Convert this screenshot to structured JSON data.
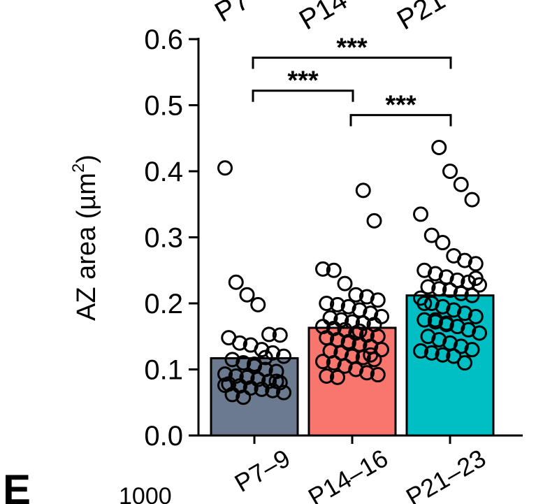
{
  "chart_data": {
    "type": "bar",
    "title": "",
    "xlabel": "",
    "ylabel": "AZ area (µm²)",
    "ylabel_parts": {
      "main": "AZ area (µm",
      "sup": "2",
      "close": ")"
    },
    "ylim": [
      0,
      0.6
    ],
    "yticks": [
      "0.0",
      "0.1",
      "0.2",
      "0.3",
      "0.4",
      "0.5",
      "0.6"
    ],
    "categories": [
      "P7–9",
      "P14–16",
      "P21–23"
    ],
    "values": [
      0.117,
      0.163,
      0.212
    ],
    "colors": [
      "#6b7a8f",
      "#f8766d",
      "#00bfc4"
    ],
    "points": [
      [
        0.405,
        0.232,
        0.213,
        0.198,
        0.153,
        0.152,
        0.148,
        0.14,
        0.137,
        0.13,
        0.125,
        0.12,
        0.115,
        0.11,
        0.105,
        0.1,
        0.097,
        0.093,
        0.09,
        0.088,
        0.085,
        0.082,
        0.08,
        0.078,
        0.075,
        0.072,
        0.07,
        0.068,
        0.065,
        0.062,
        0.058,
        0.108,
        0.118,
        0.082,
        0.076
      ],
      [
        0.371,
        0.325,
        0.252,
        0.25,
        0.23,
        0.213,
        0.21,
        0.205,
        0.2,
        0.198,
        0.195,
        0.19,
        0.185,
        0.18,
        0.178,
        0.175,
        0.172,
        0.17,
        0.168,
        0.165,
        0.162,
        0.16,
        0.155,
        0.152,
        0.15,
        0.148,
        0.145,
        0.14,
        0.138,
        0.135,
        0.13,
        0.128,
        0.125,
        0.12,
        0.118,
        0.115,
        0.112,
        0.11,
        0.105,
        0.1,
        0.095,
        0.092,
        0.09,
        0.088,
        0.142,
        0.158,
        0.122
      ],
      [
        0.436,
        0.4,
        0.38,
        0.357,
        0.335,
        0.303,
        0.292,
        0.272,
        0.265,
        0.26,
        0.25,
        0.245,
        0.24,
        0.235,
        0.232,
        0.228,
        0.225,
        0.222,
        0.22,
        0.215,
        0.212,
        0.208,
        0.2,
        0.195,
        0.19,
        0.185,
        0.18,
        0.175,
        0.172,
        0.17,
        0.165,
        0.16,
        0.155,
        0.15,
        0.145,
        0.14,
        0.135,
        0.13,
        0.128,
        0.125,
        0.122,
        0.12,
        0.11,
        0.238,
        0.2,
        0.175,
        0.168
      ]
    ],
    "significance": [
      {
        "from": 0,
        "to": 2,
        "level": 0.572,
        "label": "***"
      },
      {
        "from": 0,
        "to": 1,
        "level": 0.522,
        "label": "***"
      },
      {
        "from": 1,
        "to": 2,
        "level": 0.485,
        "label": "***"
      }
    ],
    "grid": false,
    "legend": "none"
  }
}
